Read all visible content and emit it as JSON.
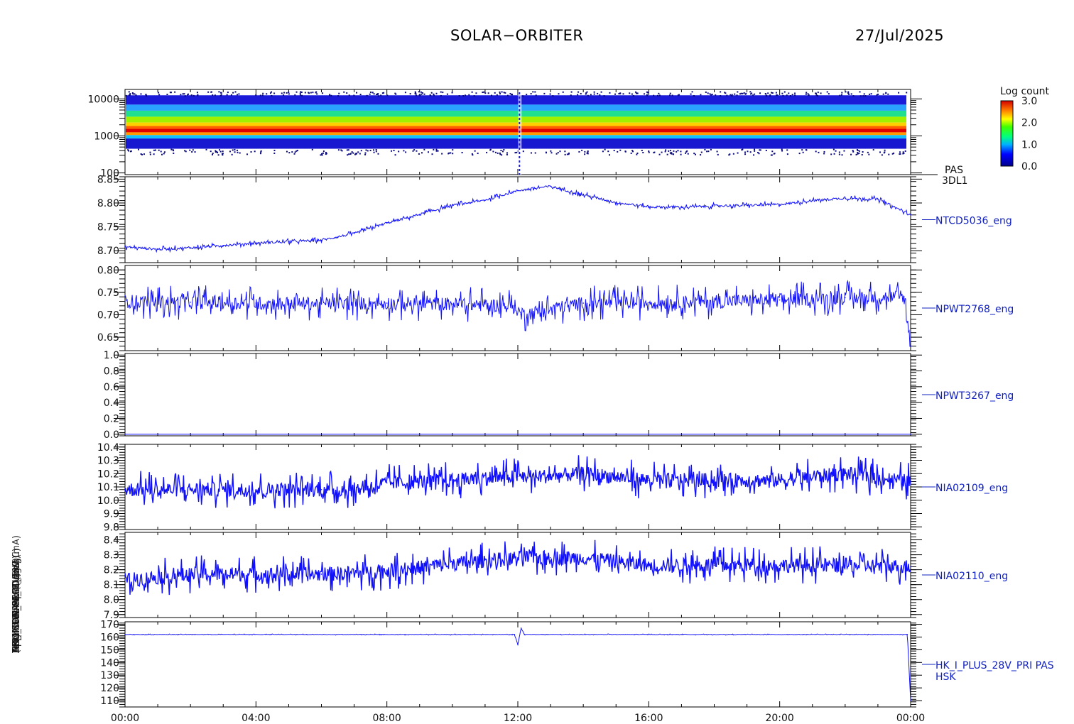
{
  "header": {
    "mission": "SOLAR−ORBITER",
    "date": "27/Jul/2025"
  },
  "chart_data": {
    "type": "line",
    "x_tick_labels": [
      "00:00",
      "04:00",
      "08:00",
      "12:00",
      "16:00",
      "20:00",
      "00:00"
    ],
    "y_axis_titles": [
      "(eV)",
      "Approx Temp (DegC)",
      "TEMP SWA-EAS (DegC)",
      "ADC SWA-PAS (V)",
      "DPU_THERM_4 (mV)",
      "HK_IMON_PRIM_28V (mA)",
      "HK_IMON_SECD (mA)"
    ],
    "colorbar": {
      "label": "Log count",
      "ticks": [
        "3.0",
        "2.0",
        "1.0",
        "0.0"
      ],
      "range": [
        0.0,
        3.0
      ]
    },
    "panels": [
      {
        "id": "spectrogram",
        "kind": "spectrogram",
        "right_label_1": "PAS",
        "right_label_2": "3DL1",
        "y_ticks": [
          "10000",
          "1000",
          "100"
        ],
        "y_log": true,
        "ylim": [
          90,
          18000
        ],
        "red_band_energy_ev": 1400,
        "upper_cutoff_ev": 12500,
        "lower_cutoff_ev": 450
      },
      {
        "id": "panel-2",
        "kind": "line",
        "right_label": "NTCD5036_eng",
        "y_ticks": [
          "8.85",
          "8.80",
          "8.75",
          "8.70"
        ],
        "ylim": [
          8.675,
          8.855
        ],
        "x_hours": [
          0,
          1,
          2,
          3,
          4,
          5,
          6,
          7,
          8,
          9,
          10,
          11,
          12,
          13,
          14,
          15,
          16,
          17,
          18,
          19,
          20,
          21,
          22,
          23,
          24
        ],
        "values": [
          8.708,
          8.703,
          8.706,
          8.711,
          8.716,
          8.719,
          8.722,
          8.736,
          8.758,
          8.776,
          8.795,
          8.806,
          8.826,
          8.835,
          8.817,
          8.801,
          8.792,
          8.791,
          8.794,
          8.795,
          8.797,
          8.805,
          8.81,
          8.808,
          8.775
        ]
      },
      {
        "id": "panel-3",
        "kind": "line",
        "right_label": "NPWT2768_eng",
        "y_ticks": [
          "0.80",
          "0.75",
          "0.70",
          "0.65"
        ],
        "ylim": [
          0.62,
          0.81
        ],
        "x_hours": [
          0,
          2,
          4,
          6,
          8,
          10,
          11.9,
          12.1,
          14,
          16,
          18,
          20,
          22,
          23.8,
          24
        ],
        "values": [
          0.73,
          0.728,
          0.726,
          0.725,
          0.726,
          0.724,
          0.72,
          0.7,
          0.726,
          0.727,
          0.73,
          0.733,
          0.738,
          0.74,
          0.63
        ]
      },
      {
        "id": "panel-4",
        "kind": "line",
        "right_label": "NPWT3267_eng",
        "y_ticks": [
          "1.0",
          "0.8",
          "0.6",
          "0.4",
          "0.2",
          "0.0"
        ],
        "ylim": [
          -0.02,
          1.02
        ],
        "x_hours": [
          0,
          24
        ],
        "values": [
          0.0,
          0.0
        ]
      },
      {
        "id": "panel-5",
        "kind": "line",
        "right_label": "NIA02109_eng",
        "y_ticks": [
          "10.4",
          "10.3",
          "10.2",
          "10.1",
          "10.0",
          "9.9",
          "9.8"
        ],
        "ylim": [
          9.78,
          10.42
        ],
        "x_hours": [
          0,
          2,
          4,
          6,
          7,
          8,
          10,
          12,
          13,
          14,
          16,
          18,
          20,
          22,
          24
        ],
        "values": [
          10.08,
          10.08,
          10.08,
          10.08,
          10.08,
          10.13,
          10.15,
          10.18,
          10.18,
          10.2,
          10.15,
          10.15,
          10.15,
          10.2,
          10.14
        ]
      },
      {
        "id": "panel-6",
        "kind": "line",
        "right_label": "NIA02110_eng",
        "y_ticks": [
          "8.4",
          "8.3",
          "8.2",
          "8.1",
          "8.0",
          "7.9"
        ],
        "ylim": [
          7.88,
          8.45
        ],
        "x_hours": [
          0,
          2,
          4,
          6,
          8,
          10,
          12,
          13,
          14,
          16,
          18,
          20,
          22,
          24
        ],
        "values": [
          8.13,
          8.17,
          8.17,
          8.17,
          8.19,
          8.24,
          8.28,
          8.28,
          8.28,
          8.23,
          8.23,
          8.23,
          8.23,
          8.22
        ]
      },
      {
        "id": "panel-7",
        "kind": "line",
        "right_label": "HK_I_PLUS_28V_PRI PAS",
        "right_label_2": "HSK",
        "y_ticks": [
          "170",
          "160",
          "150",
          "140",
          "130",
          "120",
          "110"
        ],
        "ylim": [
          105,
          172
        ],
        "x_hours": [
          0,
          11.9,
          12.0,
          12.1,
          12.2,
          23.9,
          24
        ],
        "values": [
          162,
          162,
          154,
          167,
          162,
          162,
          110
        ]
      }
    ]
  }
}
